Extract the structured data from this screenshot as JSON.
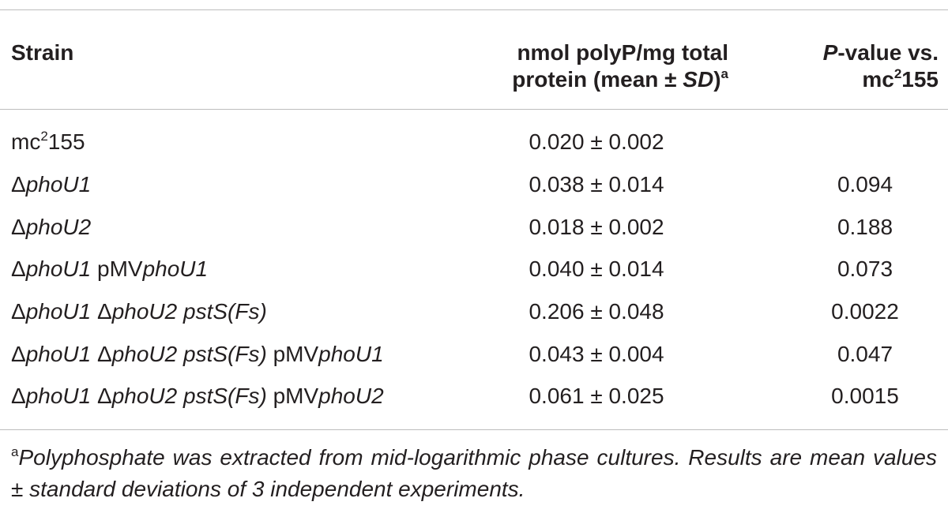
{
  "header": {
    "strain": "Strain",
    "value": {
      "line1": "nmol polyP/mg total",
      "line2": "protein (mean ±",
      "sd": "SD",
      "close": ")",
      "note": "a"
    },
    "p_value": {
      "p": "P",
      "rest": "-value vs.",
      "mc": "mc",
      "sup": "2",
      "num": "155"
    }
  },
  "rows": [
    {
      "strain": [
        "mc",
        "2",
        "155"
      ],
      "value": "0.020 ± 0.002"
    },
    {
      "strain": [
        "Δ",
        "phoU1"
      ],
      "value": "0.038 ± 0.014",
      "p_value": "0.094"
    },
    {
      "strain": [
        "Δ",
        "phoU2"
      ],
      "value": "0.018 ± 0.002",
      "p_value": "0.188"
    },
    {
      "strain": [
        "Δ",
        "phoU1",
        "pMV",
        "phoU1"
      ],
      "value": "0.040 ± 0.014",
      "p_value": "0.073"
    },
    {
      "strain": [
        "Δ",
        "phoU1",
        "Δ",
        "phoU2 pstS(Fs)"
      ],
      "value": "0.206 ± 0.048",
      "p_value": "0.0022"
    },
    {
      "strain": [
        "Δ",
        "phoU1",
        "Δ",
        "phoU2 pstS(Fs)",
        "pMV",
        "phoU1"
      ],
      "value": "0.043 ± 0.004",
      "p_value": "0.047"
    },
    {
      "strain": [
        "Δ",
        "phoU1",
        "Δ",
        "phoU2 pstS(Fs)",
        "pMV",
        "phoU2"
      ],
      "value": "0.061 ± 0.025",
      "p_value": "0.0015"
    }
  ],
  "footnote": {
    "mark": "a",
    "text": "Polyphosphate was extracted from mid-logarithmic phase cultures. Results are mean values ± standard deviations of 3 independent experiments."
  }
}
